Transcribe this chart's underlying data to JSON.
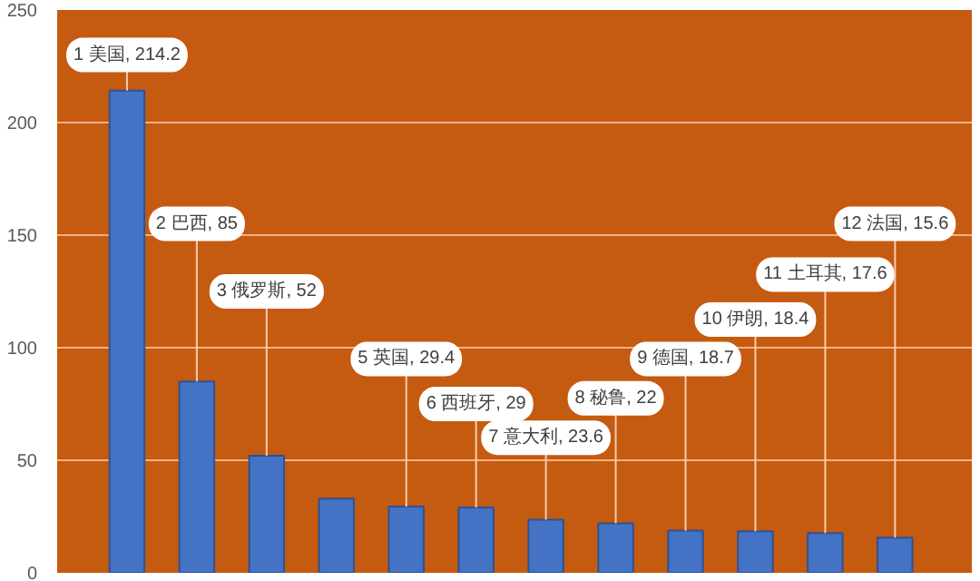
{
  "chart_data": {
    "type": "bar",
    "categories": [
      null,
      null,
      null,
      null,
      null,
      null,
      null,
      null,
      null,
      null,
      null,
      null
    ],
    "values": [
      214.2,
      85,
      52,
      33,
      29.4,
      29,
      23.6,
      22,
      18.7,
      18.4,
      17.6,
      15.6
    ],
    "value_labels": [
      "1 美国, 214.2",
      "2 巴西, 85",
      "3 俄罗斯, 52",
      null,
      "5 英国, 29.4",
      "6 西班牙, 29",
      "7 意大利, 23.6",
      "8 秘鲁, 22",
      "9 德国, 18.7",
      "10 伊朗, 18.4",
      "11 土耳其, 17.6",
      "12 法国, 15.6"
    ],
    "color": "#4472c4",
    "ylim": [
      0,
      250
    ],
    "yticks": [
      0,
      50,
      100,
      150,
      200,
      250
    ],
    "grid": "y",
    "tick_labels": "y"
  }
}
